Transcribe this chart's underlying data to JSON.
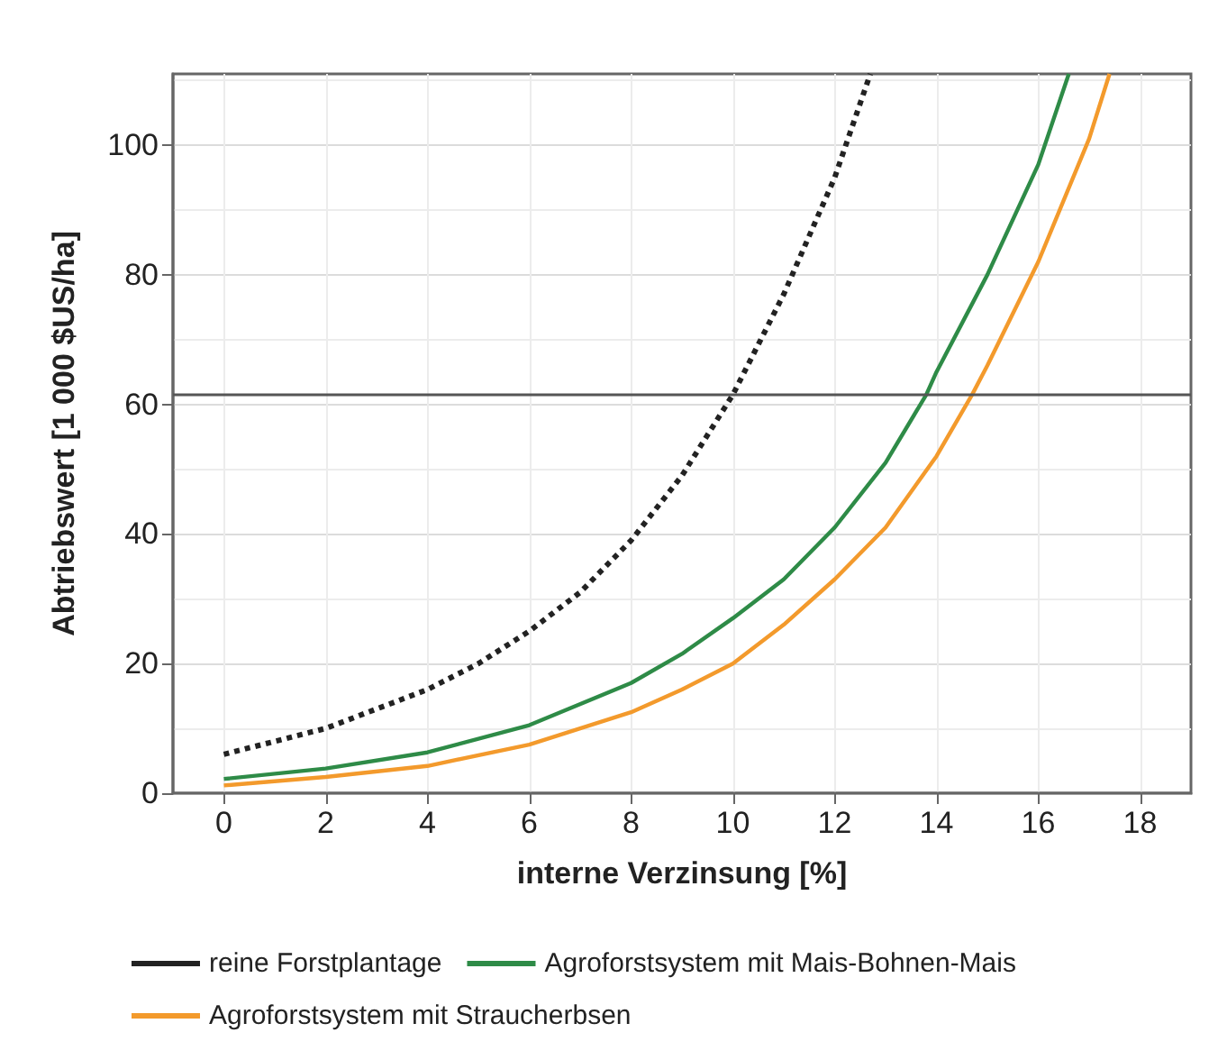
{
  "chart_data": {
    "type": "line",
    "xlabel": "interne Verzinsung [%]",
    "ylabel": "Abtriebswert [1 000 $US/ha]",
    "xlim": [
      -1,
      19
    ],
    "xticks": [
      0,
      2,
      4,
      6,
      8,
      10,
      12,
      14,
      16,
      18
    ],
    "ylim": [
      0,
      111
    ],
    "yticks": [
      0,
      20,
      40,
      60,
      80,
      100
    ],
    "grid": true,
    "legend": "bottom",
    "marker": "none",
    "ref_lines": [
      {
        "axis": "y",
        "value": 61.5,
        "color": "#555555",
        "line_style": "solid"
      }
    ],
    "series": [
      {
        "name": "reine Forstplantage",
        "color": "#222222",
        "line_style": "dotted",
        "x": [
          0,
          1,
          2,
          3,
          4,
          5,
          6,
          7,
          8,
          9,
          10,
          11,
          12,
          12.7
        ],
        "values": [
          6,
          8,
          10,
          13,
          16,
          20,
          25,
          31,
          39,
          49,
          61.5,
          77,
          95,
          111
        ]
      },
      {
        "name": "Agroforstsystem mit Mais-Bohnen-Mais",
        "color": "#2e8b47",
        "line_style": "solid",
        "x": [
          0,
          2,
          4,
          6,
          8,
          9,
          10,
          11,
          12,
          13,
          13.8,
          14,
          15,
          16,
          16.6
        ],
        "values": [
          2.2,
          3.8,
          6.3,
          10.5,
          17,
          21.5,
          27,
          33,
          41,
          51,
          61.5,
          65,
          80,
          97,
          111
        ]
      },
      {
        "name": "Agroforstsystem mit Straucherbsen",
        "color": "#f39a2c",
        "line_style": "solid",
        "x": [
          0,
          2,
          4,
          6,
          8,
          9,
          10,
          11,
          12,
          13,
          14,
          14.7,
          15,
          16,
          17,
          17.4
        ],
        "values": [
          1.2,
          2.5,
          4.2,
          7.5,
          12.5,
          16,
          20,
          26,
          33,
          41,
          52,
          61.5,
          66,
          82,
          101,
          111
        ]
      }
    ]
  }
}
